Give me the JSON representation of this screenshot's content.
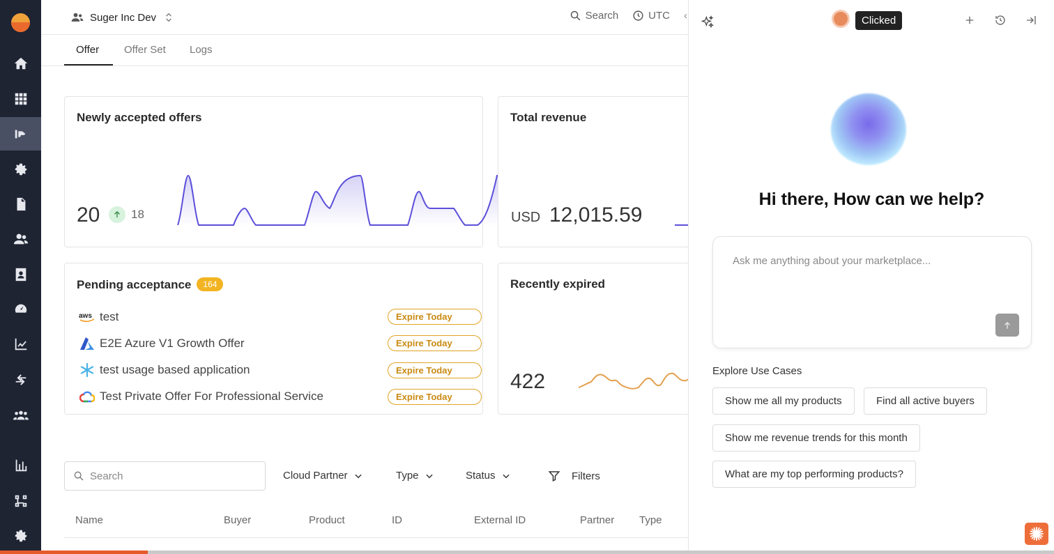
{
  "org": {
    "name": "Suger Inc Dev"
  },
  "topbar": {
    "search_label": "Search",
    "timezone": "UTC"
  },
  "tabs": [
    {
      "label": "Offer"
    },
    {
      "label": "Offer Set"
    },
    {
      "label": "Logs"
    }
  ],
  "cards": {
    "newly_accepted": {
      "title": "Newly accepted offers",
      "value": "20",
      "delta": "18"
    },
    "total_revenue": {
      "title": "Total revenue",
      "currency": "USD",
      "value": "12,015.59"
    },
    "pending": {
      "title": "Pending acceptance",
      "count": "164",
      "rows": [
        {
          "name": "test",
          "icon": "aws-icon",
          "status": "Expire Today"
        },
        {
          "name": "E2E Azure V1 Growth Offer",
          "icon": "azure-icon",
          "status": "Expire Today"
        },
        {
          "name": "test usage based application",
          "icon": "snowflake-icon",
          "status": "Expire Today"
        },
        {
          "name": "Test Private Offer For Professional Service",
          "icon": "gcp-icon",
          "status": "Expire Today"
        }
      ]
    },
    "recently_expired": {
      "title": "Recently expired",
      "value": "422"
    }
  },
  "filters": {
    "search_placeholder": "Search",
    "cloud_partner": "Cloud Partner",
    "type": "Type",
    "status": "Status",
    "filters": "Filters"
  },
  "table_columns": [
    "Name",
    "Buyer",
    "Product",
    "ID",
    "External ID",
    "Partner",
    "Type"
  ],
  "assistant": {
    "tooltip": "Clicked",
    "heading": "Hi there, How can we help?",
    "input_placeholder": "Ask me anything about your marketplace...",
    "explore_label": "Explore Use Cases",
    "use_cases": [
      "Show me all my products",
      "Find all active buyers",
      "Show me revenue trends for this month",
      "What are my top performing products?"
    ]
  },
  "colors": {
    "accent": "#e55a2b",
    "sparkline_purple": "#5b4fd9",
    "sparkline_orange": "#e3a04f",
    "badge_yellow": "#f2b422",
    "rail": "#1f2433"
  },
  "progress": 0.14
}
